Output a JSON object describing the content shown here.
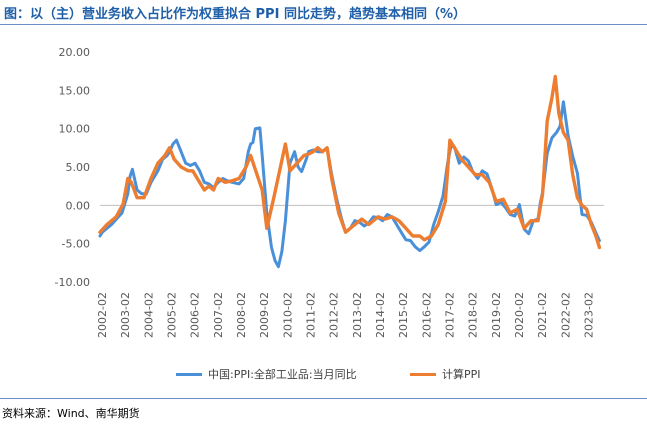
{
  "title": "图：以（主）营业务收入占比作为权重拟合 PPI 同比走势，趋势基本相同（%）",
  "source": "资料来源：Wind、南华期货",
  "colors": {
    "title": "#1f5fa8",
    "axis_text": "#595959",
    "rule": "#6a8fc7"
  },
  "chart_data": {
    "type": "line",
    "title": "",
    "xlabel": "",
    "ylabel": "",
    "ylim": [
      -10,
      20
    ],
    "y_ticks": [
      "20.00",
      "15.00",
      "10.00",
      "5.00",
      "0.00",
      "-5.00",
      "-10.00"
    ],
    "y_tick_values": [
      20,
      15,
      10,
      5,
      0,
      -5,
      -10
    ],
    "x_ticks": [
      "2002-02",
      "2003-02",
      "2004-02",
      "2005-02",
      "2006-02",
      "2007-02",
      "2008-02",
      "2009-02",
      "2010-02",
      "2011-02",
      "2012-02",
      "2013-02",
      "2014-02",
      "2015-02",
      "2016-02",
      "2017-02",
      "2018-02",
      "2019-02",
      "2020-02",
      "2021-02",
      "2022-02",
      "2023-02"
    ],
    "x_range": [
      2002.0,
      2023.75
    ],
    "grid": false,
    "legend_position": "bottom",
    "series": [
      {
        "name": "中国:PPI:全部工业品:当月同比",
        "color": "#4a90d9",
        "x": [
          2002.0,
          2002.1,
          2002.5,
          2002.8,
          2002.95,
          2003.05,
          2003.2,
          2003.3,
          2003.4,
          2003.6,
          2003.8,
          2004.0,
          2004.2,
          2004.5,
          2004.7,
          2004.9,
          2005.0,
          2005.15,
          2005.3,
          2005.5,
          2005.7,
          2005.9,
          2006.1,
          2006.3,
          2006.5,
          2006.7,
          2006.9,
          2007.1,
          2007.3,
          2007.5,
          2007.7,
          2008.0,
          2008.2,
          2008.4,
          2008.5,
          2008.6,
          2008.7,
          2008.9,
          2009.0,
          2009.2,
          2009.4,
          2009.55,
          2009.7,
          2009.85,
          2010.0,
          2010.2,
          2010.4,
          2010.55,
          2010.7,
          2010.9,
          2011.0,
          2011.2,
          2011.4,
          2011.6,
          2011.8,
          2012.0,
          2012.2,
          2012.4,
          2012.6,
          2012.8,
          2013.0,
          2013.2,
          2013.4,
          2013.6,
          2013.8,
          2014.0,
          2014.2,
          2014.4,
          2014.6,
          2014.8,
          2015.0,
          2015.2,
          2015.4,
          2015.6,
          2015.8,
          2016.0,
          2016.2,
          2016.4,
          2016.6,
          2016.8,
          2017.0,
          2017.15,
          2017.3,
          2017.5,
          2017.7,
          2017.9,
          2018.1,
          2018.3,
          2018.5,
          2018.7,
          2018.9,
          2019.1,
          2019.3,
          2019.5,
          2019.7,
          2019.9,
          2020.1,
          2020.3,
          2020.5,
          2020.7,
          2020.9,
          2021.0,
          2021.1,
          2021.3,
          2021.5,
          2021.7,
          2021.85,
          2022.0,
          2022.2,
          2022.4,
          2022.6,
          2022.8,
          2023.0,
          2023.2,
          2023.4,
          2023.55
        ],
        "values": [
          -4.0,
          -3.5,
          -2.5,
          -1.5,
          -1.0,
          0.0,
          1.5,
          3.8,
          4.7,
          2.0,
          1.5,
          1.5,
          3.0,
          4.5,
          6.0,
          6.5,
          7.0,
          8.0,
          8.5,
          7.0,
          5.5,
          5.2,
          5.5,
          4.5,
          3.0,
          2.8,
          2.3,
          3.0,
          3.5,
          3.2,
          3.0,
          2.8,
          3.5,
          7.0,
          8.0,
          8.2,
          10.0,
          10.1,
          6.5,
          -1.0,
          -5.5,
          -7.2,
          -8.0,
          -6.0,
          -2.0,
          5.5,
          7.0,
          5.0,
          4.4,
          6.0,
          7.0,
          7.2,
          7.0,
          7.0,
          7.5,
          4.0,
          1.0,
          -1.5,
          -3.5,
          -3.0,
          -2.0,
          -2.2,
          -2.7,
          -2.3,
          -1.5,
          -1.6,
          -2.0,
          -1.2,
          -1.5,
          -2.5,
          -3.5,
          -4.5,
          -4.6,
          -5.4,
          -5.9,
          -5.4,
          -4.8,
          -2.5,
          -0.8,
          1.2,
          5.5,
          7.8,
          7.6,
          5.5,
          6.3,
          5.8,
          4.3,
          3.5,
          4.5,
          4.1,
          2.3,
          0.1,
          0.4,
          -0.3,
          -1.2,
          -1.4,
          0.1,
          -3.1,
          -3.7,
          -2.0,
          -1.8,
          0.3,
          1.7,
          6.8,
          8.8,
          9.5,
          10.3,
          13.5,
          9.1,
          6.4,
          4.2,
          -1.2,
          -1.3,
          -2.2,
          -3.6,
          -4.6
        ],
        "line_width": 3.0
      },
      {
        "name": "计算PPI",
        "color": "#ed7d31",
        "x": [
          2002.0,
          2002.3,
          2002.7,
          2003.0,
          2003.2,
          2003.35,
          2003.6,
          2003.9,
          2004.2,
          2004.5,
          2004.8,
          2005.0,
          2005.2,
          2005.5,
          2005.8,
          2006.0,
          2006.2,
          2006.5,
          2006.7,
          2006.9,
          2007.1,
          2007.4,
          2007.7,
          2008.0,
          2008.3,
          2008.5,
          2009.0,
          2009.2,
          2009.5,
          2010.0,
          2010.2,
          2010.5,
          2010.8,
          2011.0,
          2011.2,
          2011.4,
          2011.6,
          2011.8,
          2012.0,
          2012.3,
          2012.6,
          2013.0,
          2013.3,
          2013.6,
          2014.0,
          2014.3,
          2014.6,
          2014.9,
          2015.2,
          2015.5,
          2015.8,
          2016.0,
          2016.3,
          2016.6,
          2016.9,
          2017.1,
          2017.3,
          2017.6,
          2017.9,
          2018.2,
          2018.5,
          2018.8,
          2019.1,
          2019.4,
          2019.7,
          2020.0,
          2020.3,
          2020.6,
          2020.9,
          2021.1,
          2021.3,
          2021.5,
          2021.65,
          2021.8,
          2022.0,
          2022.2,
          2022.4,
          2022.6,
          2022.8,
          2023.0,
          2023.2,
          2023.4,
          2023.55
        ],
        "values": [
          -3.5,
          -2.5,
          -1.5,
          0.2,
          3.5,
          3.0,
          1.0,
          1.0,
          3.5,
          5.5,
          6.5,
          7.5,
          6.0,
          5.0,
          4.5,
          4.5,
          3.5,
          2.0,
          2.5,
          2.0,
          3.5,
          3.0,
          3.2,
          3.5,
          5.0,
          6.5,
          2.0,
          -3.0,
          1.0,
          8.0,
          4.5,
          5.5,
          6.5,
          6.7,
          7.0,
          7.5,
          7.0,
          7.5,
          3.5,
          -1.0,
          -3.5,
          -2.5,
          -1.8,
          -2.5,
          -1.5,
          -1.8,
          -1.5,
          -2.0,
          -3.0,
          -4.0,
          -4.0,
          -4.5,
          -4.0,
          -2.5,
          0.5,
          8.5,
          7.5,
          6.0,
          5.0,
          4.0,
          4.0,
          3.0,
          0.5,
          0.8,
          -1.0,
          -0.5,
          -3.0,
          -2.0,
          -2.0,
          1.5,
          11.0,
          14.0,
          16.8,
          12.0,
          9.5,
          8.5,
          4.0,
          1.0,
          0.0,
          -0.5,
          -2.5,
          -4.0,
          -5.5
        ],
        "line_width": 3.4
      }
    ]
  }
}
